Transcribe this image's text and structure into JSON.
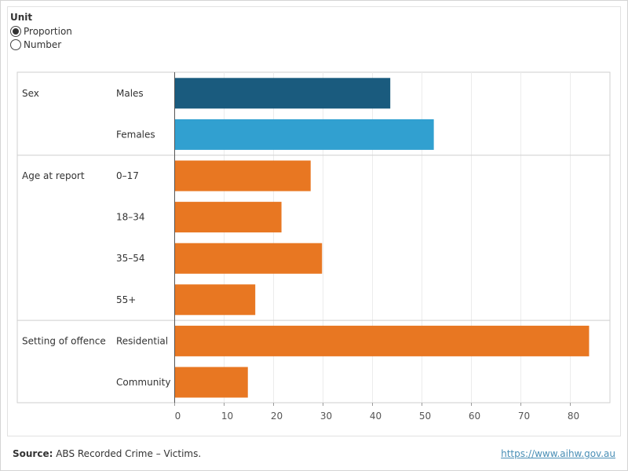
{
  "controls": {
    "unit_title": "Unit",
    "options": [
      {
        "label": "Proportion",
        "selected": true
      },
      {
        "label": "Number",
        "selected": false
      }
    ]
  },
  "chart_data": {
    "type": "bar",
    "orientation": "horizontal",
    "title": "",
    "xlabel": "",
    "ylabel": "",
    "xlim": [
      0,
      85
    ],
    "xticks": [
      0,
      10,
      20,
      30,
      40,
      50,
      60,
      70,
      80
    ],
    "grid": true,
    "groups": [
      {
        "name": "Sex",
        "categories": [
          {
            "label": "Males",
            "value": 43.6,
            "color": "#1a5b7e"
          },
          {
            "label": "Females",
            "value": 52.4,
            "color": "#31a0d0"
          }
        ]
      },
      {
        "name": "Age at report",
        "categories": [
          {
            "label": "0–17",
            "value": 27.5,
            "color": "#e87722"
          },
          {
            "label": "18–34",
            "value": 21.6,
            "color": "#e87722"
          },
          {
            "label": "35–54",
            "value": 29.8,
            "color": "#e87722"
          },
          {
            "label": "55+",
            "value": 16.3,
            "color": "#e87722"
          }
        ]
      },
      {
        "name": "Setting of offence",
        "categories": [
          {
            "label": "Residential",
            "value": 83.8,
            "color": "#e87722"
          },
          {
            "label": "Community",
            "value": 14.8,
            "color": "#e87722"
          }
        ]
      }
    ]
  },
  "footer": {
    "source_label": "Source:",
    "source_text": " ABS Recorded Crime – Victims.",
    "link_text": "https://www.aihw.gov.au"
  }
}
